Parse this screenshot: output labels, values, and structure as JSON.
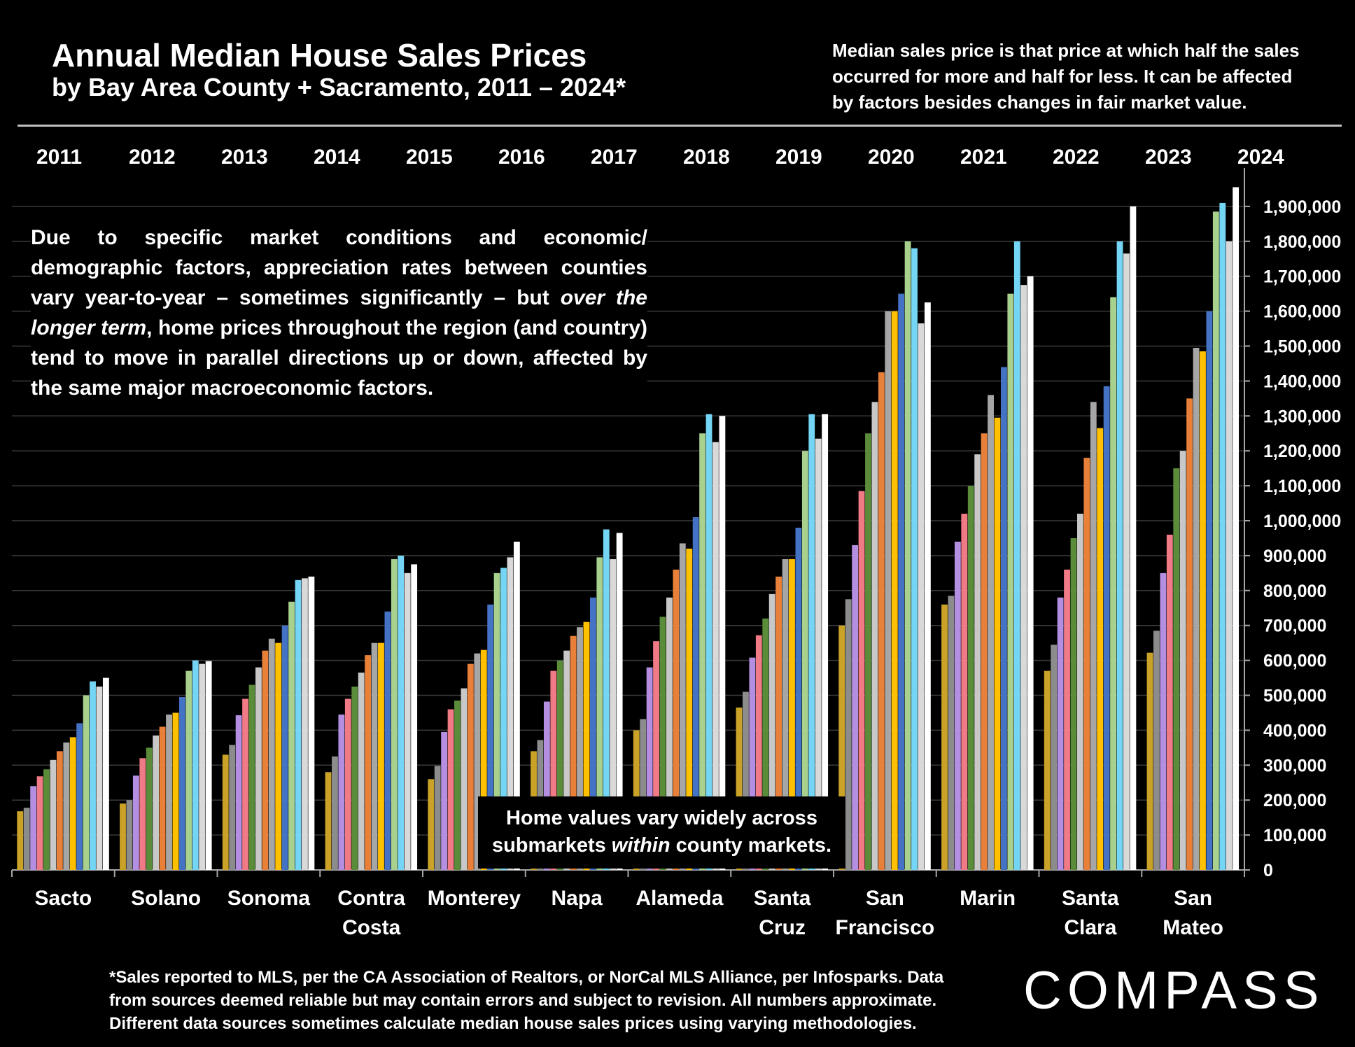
{
  "chart_data": {
    "type": "bar",
    "title": "Annual Median House Sales Prices",
    "subtitle": "by Bay Area County + Sacramento, 2011 – 2024*",
    "note_lines": [
      "Median sales price is that price at which half the sales",
      "occurred for more and half for less. It can be affected",
      "by factors besides changes in fair market value."
    ],
    "annotation": [
      "Due to specific market conditions and economic/ demographic factors, appreciation rates between counties vary year-to-year – sometimes significantly – but ",
      "over the longer term",
      ", home prices throughout the region (and country) tend to move in parallel directions up or down, affected by the same major macroeconomic factors."
    ],
    "box_annotation": [
      "Home values vary widely across submarkets ",
      "within",
      " county markets."
    ],
    "footnote_lines": [
      "*Sales reported to MLS, per the CA Association of Realtors, or NorCal MLS Alliance, per Infosparks. Data",
      "from sources deemed reliable but may contain errors and subject to revision. All numbers approximate.",
      "Different data sources sometimes calculate median house sales prices using varying methodologies."
    ],
    "logo": "COMPASS",
    "categories": [
      "Sacto",
      "Solano",
      "Sonoma",
      "Contra Costa",
      "Monterey",
      "Napa",
      "Alameda",
      "Santa Cruz",
      "San Francisco",
      "Marin",
      "Santa Clara",
      "San Mateo"
    ],
    "series": [
      {
        "name": "2011",
        "color": "#c9a227",
        "values": [
          168000,
          190000,
          330000,
          280000,
          260000,
          340000,
          400000,
          465000,
          700000,
          760000,
          570000,
          622000
        ]
      },
      {
        "name": "2012",
        "color": "#8c8c8c",
        "values": [
          178000,
          200000,
          358000,
          325000,
          298000,
          372000,
          432000,
          510000,
          775000,
          785000,
          645000,
          685000
        ]
      },
      {
        "name": "2013",
        "color": "#b48ee0",
        "values": [
          240000,
          270000,
          443000,
          445000,
          395000,
          482000,
          580000,
          608000,
          930000,
          940000,
          780000,
          850000
        ]
      },
      {
        "name": "2014",
        "color": "#f07a86",
        "values": [
          268000,
          320000,
          490000,
          490000,
          460000,
          570000,
          655000,
          672000,
          1085000,
          1020000,
          860000,
          960000
        ]
      },
      {
        "name": "2015",
        "color": "#5a8c3a",
        "values": [
          288000,
          350000,
          530000,
          525000,
          485000,
          600000,
          725000,
          720000,
          1250000,
          1100000,
          950000,
          1150000
        ]
      },
      {
        "name": "2016",
        "color": "#c8c8c8",
        "values": [
          315000,
          385000,
          580000,
          565000,
          520000,
          628000,
          780000,
          790000,
          1340000,
          1190000,
          1020000,
          1200000
        ]
      },
      {
        "name": "2017",
        "color": "#e8803a",
        "values": [
          340000,
          410000,
          628000,
          615000,
          590000,
          670000,
          860000,
          840000,
          1425000,
          1250000,
          1180000,
          1350000
        ]
      },
      {
        "name": "2018",
        "color": "#a6a6a6",
        "values": [
          365000,
          445000,
          662000,
          650000,
          620000,
          695000,
          935000,
          890000,
          1600000,
          1360000,
          1340000,
          1495000
        ]
      },
      {
        "name": "2019",
        "color": "#ffc000",
        "values": [
          380000,
          450000,
          650000,
          650000,
          630000,
          710000,
          920000,
          890000,
          1600000,
          1295000,
          1265000,
          1485000
        ]
      },
      {
        "name": "2020",
        "color": "#4472c4",
        "values": [
          420000,
          495000,
          700000,
          740000,
          760000,
          780000,
          1010000,
          980000,
          1650000,
          1440000,
          1385000,
          1600000
        ]
      },
      {
        "name": "2021",
        "color": "#a9d18e",
        "values": [
          500000,
          570000,
          768000,
          890000,
          850000,
          895000,
          1250000,
          1200000,
          1800000,
          1650000,
          1640000,
          1885000
        ]
      },
      {
        "name": "2022",
        "color": "#75d5f5",
        "values": [
          540000,
          600000,
          830000,
          900000,
          865000,
          975000,
          1305000,
          1305000,
          1780000,
          1800000,
          1800000,
          1910000
        ]
      },
      {
        "name": "2023",
        "color": "#d9d9d9",
        "values": [
          525000,
          590000,
          835000,
          850000,
          895000,
          890000,
          1225000,
          1235000,
          1565000,
          1675000,
          1765000,
          1800000
        ]
      },
      {
        "name": "2024",
        "color": "#ffffff",
        "values": [
          550000,
          598000,
          840000,
          875000,
          940000,
          965000,
          1300000,
          1305000,
          1625000,
          1700000,
          1900000,
          1955000
        ]
      }
    ],
    "ylim": [
      0,
      2000000
    ],
    "yticks": [
      0,
      {
        "value": 100000,
        "label": "100,000"
      },
      {
        "value": 200000,
        "label": "200,000"
      },
      {
        "value": 300000,
        "label": "300,000"
      },
      {
        "value": 400000,
        "label": "400,000"
      },
      {
        "value": 500000,
        "label": "500,000"
      },
      {
        "value": 600000,
        "label": "600,000"
      },
      {
        "value": 700000,
        "label": "700,000"
      },
      {
        "value": 800000,
        "label": "800,000"
      },
      {
        "value": 900000,
        "label": "900,000"
      },
      {
        "value": 1000000,
        "label": "1,000,000"
      },
      {
        "value": 1100000,
        "label": "1,100,000"
      },
      {
        "value": 1200000,
        "label": "1,200,000"
      },
      {
        "value": 1300000,
        "label": "1,300,000"
      },
      {
        "value": 1400000,
        "label": "1,400,000"
      },
      {
        "value": 1500000,
        "label": "1,500,000"
      },
      {
        "value": 1600000,
        "label": "1,600,000"
      },
      {
        "value": 1700000,
        "label": "1,700,000"
      },
      {
        "value": 1800000,
        "label": "1,800,000"
      },
      {
        "value": 1900000,
        "label": "1,900,000"
      }
    ],
    "grid": true,
    "y_axis_side": "right"
  }
}
